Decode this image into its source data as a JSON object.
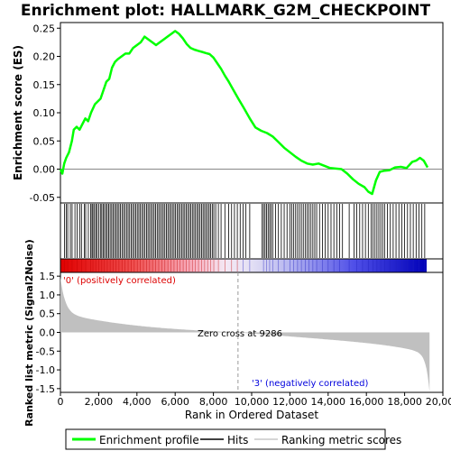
{
  "title": "Enrichment plot: HALLMARK_G2M_CHECKPOINT",
  "top_panel": {
    "ylabel": "Enrichment score (ES)",
    "yticks": [
      "0.25",
      "0.20",
      "0.15",
      "0.10",
      "0.05",
      "0.00",
      "-0.05"
    ]
  },
  "bottom_panel": {
    "ylabel": "Ranked list metric (Signal2Noise)",
    "yticks": [
      "1.5",
      "1.0",
      "0.5",
      "0.0",
      "-0.5",
      "-1.0",
      "-1.5"
    ],
    "positive_label": "'0' (positively correlated)",
    "negative_label": "'3' (negatively correlated)",
    "zero_cross_label": "Zero cross at 9286"
  },
  "xaxis": {
    "xlabel": "Rank in Ordered Dataset",
    "xticks": [
      "0",
      "2,000",
      "4,000",
      "6,000",
      "8,000",
      "10,000",
      "12,000",
      "14,000",
      "16,000",
      "18,000",
      "20,000"
    ]
  },
  "legend": {
    "items": [
      {
        "label": "Enrichment profile",
        "color": "#00ff00"
      },
      {
        "label": "Hits",
        "color": "#000000"
      },
      {
        "label": "Ranking metric scores",
        "color": "#c8c8c8"
      }
    ]
  },
  "colors": {
    "es_line": "#00ff00",
    "metric_fill": "#c0c0c0",
    "positive_text": "#dd0000",
    "negative_text": "#0000dd"
  },
  "chart_data": {
    "type": "line",
    "x_range": [
      0,
      20000
    ],
    "es_ylim": [
      -0.06,
      0.26
    ],
    "metric_ylim": [
      -1.6,
      1.6
    ],
    "n_genes": 19300,
    "zero_cross": 9286,
    "es_profile": [
      [
        0,
        0.0
      ],
      [
        100,
        -0.008
      ],
      [
        200,
        0.01
      ],
      [
        300,
        0.02
      ],
      [
        450,
        0.03
      ],
      [
        600,
        0.05
      ],
      [
        700,
        0.07
      ],
      [
        850,
        0.075
      ],
      [
        1000,
        0.07
      ],
      [
        1150,
        0.08
      ],
      [
        1300,
        0.09
      ],
      [
        1450,
        0.085
      ],
      [
        1600,
        0.1
      ],
      [
        1800,
        0.115
      ],
      [
        1950,
        0.12
      ],
      [
        2100,
        0.125
      ],
      [
        2250,
        0.14
      ],
      [
        2400,
        0.155
      ],
      [
        2550,
        0.16
      ],
      [
        2700,
        0.18
      ],
      [
        2850,
        0.19
      ],
      [
        3000,
        0.195
      ],
      [
        3200,
        0.2
      ],
      [
        3400,
        0.205
      ],
      [
        3600,
        0.205
      ],
      [
        3800,
        0.215
      ],
      [
        4000,
        0.22
      ],
      [
        4200,
        0.225
      ],
      [
        4400,
        0.235
      ],
      [
        4600,
        0.23
      ],
      [
        4800,
        0.225
      ],
      [
        5000,
        0.22
      ],
      [
        5200,
        0.225
      ],
      [
        5400,
        0.23
      ],
      [
        5600,
        0.235
      ],
      [
        5800,
        0.24
      ],
      [
        6000,
        0.245
      ],
      [
        6200,
        0.24
      ],
      [
        6400,
        0.232
      ],
      [
        6600,
        0.222
      ],
      [
        6800,
        0.215
      ],
      [
        7000,
        0.212
      ],
      [
        7200,
        0.21
      ],
      [
        7400,
        0.208
      ],
      [
        7600,
        0.206
      ],
      [
        7800,
        0.204
      ],
      [
        8000,
        0.198
      ],
      [
        8200,
        0.188
      ],
      [
        8400,
        0.178
      ],
      [
        8600,
        0.166
      ],
      [
        8800,
        0.155
      ],
      [
        9000,
        0.143
      ],
      [
        9300,
        0.125
      ],
      [
        9600,
        0.108
      ],
      [
        9900,
        0.09
      ],
      [
        10200,
        0.074
      ],
      [
        10500,
        0.068
      ],
      [
        10800,
        0.064
      ],
      [
        11100,
        0.058
      ],
      [
        11400,
        0.048
      ],
      [
        11700,
        0.038
      ],
      [
        12000,
        0.03
      ],
      [
        12300,
        0.022
      ],
      [
        12600,
        0.015
      ],
      [
        12900,
        0.01
      ],
      [
        13200,
        0.008
      ],
      [
        13500,
        0.01
      ],
      [
        13800,
        0.006
      ],
      [
        14100,
        0.002
      ],
      [
        14400,
        0.001
      ],
      [
        14700,
        0.0
      ],
      [
        15000,
        -0.008
      ],
      [
        15300,
        -0.018
      ],
      [
        15600,
        -0.026
      ],
      [
        15900,
        -0.032
      ],
      [
        16100,
        -0.04
      ],
      [
        16300,
        -0.044
      ],
      [
        16500,
        -0.02
      ],
      [
        16700,
        -0.005
      ],
      [
        16900,
        -0.003
      ],
      [
        17200,
        -0.002
      ],
      [
        17500,
        0.003
      ],
      [
        17800,
        0.004
      ],
      [
        18100,
        0.002
      ],
      [
        18400,
        0.013
      ],
      [
        18600,
        0.015
      ],
      [
        18800,
        0.02
      ],
      [
        19000,
        0.015
      ],
      [
        19200,
        0.003
      ]
    ],
    "hits": [
      210,
      300,
      380,
      520,
      610,
      760,
      870,
      1020,
      1100,
      1250,
      1320,
      1460,
      1580,
      1650,
      1700,
      1780,
      1850,
      1920,
      2010,
      2090,
      2160,
      2230,
      2300,
      2380,
      2450,
      2520,
      2600,
      2680,
      2750,
      2830,
      2910,
      2980,
      3060,
      3140,
      3220,
      3300,
      3380,
      3460,
      3540,
      3620,
      3700,
      3780,
      3860,
      3940,
      4020,
      4100,
      4180,
      4260,
      4340,
      4420,
      4500,
      4580,
      4660,
      4740,
      4820,
      4900,
      4980,
      5060,
      5140,
      5220,
      5300,
      5380,
      5460,
      5540,
      5620,
      5700,
      5780,
      5860,
      5940,
      6020,
      6100,
      6180,
      6260,
      6340,
      6420,
      6500,
      6580,
      6660,
      6740,
      6820,
      6900,
      6980,
      7060,
      7140,
      7220,
      7300,
      7380,
      7460,
      7540,
      7620,
      7700,
      7780,
      7860,
      7940,
      8020,
      8120,
      8260,
      8400,
      8600,
      8800,
      8950,
      9100,
      9250,
      9400,
      9550,
      9700,
      9900,
      10550,
      10620,
      10700,
      10780,
      10860,
      10940,
      11020,
      11100,
      11250,
      11400,
      11550,
      11700,
      11850,
      12000,
      12100,
      12200,
      12300,
      12400,
      12500,
      12600,
      12700,
      12800,
      12900,
      13000,
      13100,
      13200,
      13300,
      13400,
      13550,
      13700,
      13850,
      14000,
      14150,
      14300,
      14450,
      14600,
      14750,
      15100,
      15350,
      15500,
      15650,
      15800,
      15950,
      16100,
      16250,
      16350,
      16450,
      16550,
      16650,
      16750,
      16850,
      16950,
      17100,
      17250,
      17400,
      17550,
      17700,
      17850,
      18000,
      18150,
      18300,
      18450,
      18600,
      18750,
      18900,
      19050
    ]
  }
}
